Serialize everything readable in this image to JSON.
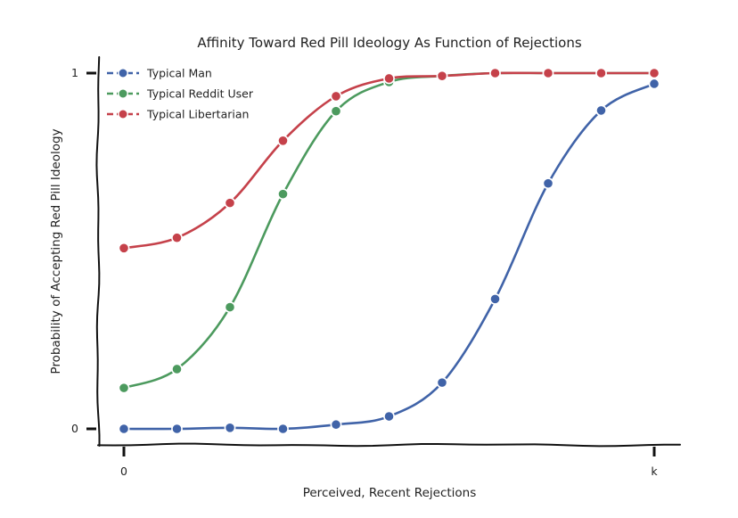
{
  "chart_data": {
    "type": "line",
    "title": "Affinity Toward Red Pill Ideology As Function of Rejections",
    "xlabel": "Perceived, Recent Rejections",
    "ylabel": "Probability of Accepting Red Pill Ideology",
    "x": [
      0,
      1,
      2,
      3,
      4,
      5,
      6,
      7,
      8,
      9,
      10
    ],
    "x_tick_values": [
      0,
      10
    ],
    "x_tick_labels": [
      "0",
      "k"
    ],
    "y_tick_values": [
      0,
      1
    ],
    "y_tick_labels": [
      "0",
      "1"
    ],
    "xlim": [
      -0.5,
      10.5
    ],
    "ylim": [
      -0.05,
      1.05
    ],
    "grid": false,
    "legend_position": "top-left",
    "series": [
      {
        "name": "Typical Man",
        "color": "#4063a8",
        "values": [
          0.0,
          0.0,
          0.003,
          0.0,
          0.012,
          0.035,
          0.13,
          0.365,
          0.69,
          0.895,
          0.97
        ]
      },
      {
        "name": "Typical Reddit User",
        "color": "#4c9a5e",
        "values": [
          0.115,
          0.168,
          0.342,
          0.66,
          0.893,
          0.975,
          0.992,
          1.0,
          1.0,
          1.0,
          1.0
        ]
      },
      {
        "name": "Typical Libertarian",
        "color": "#c5414a",
        "values": [
          0.508,
          0.537,
          0.635,
          0.81,
          0.935,
          0.985,
          0.992,
          1.0,
          1.0,
          1.0,
          1.0
        ]
      }
    ]
  }
}
